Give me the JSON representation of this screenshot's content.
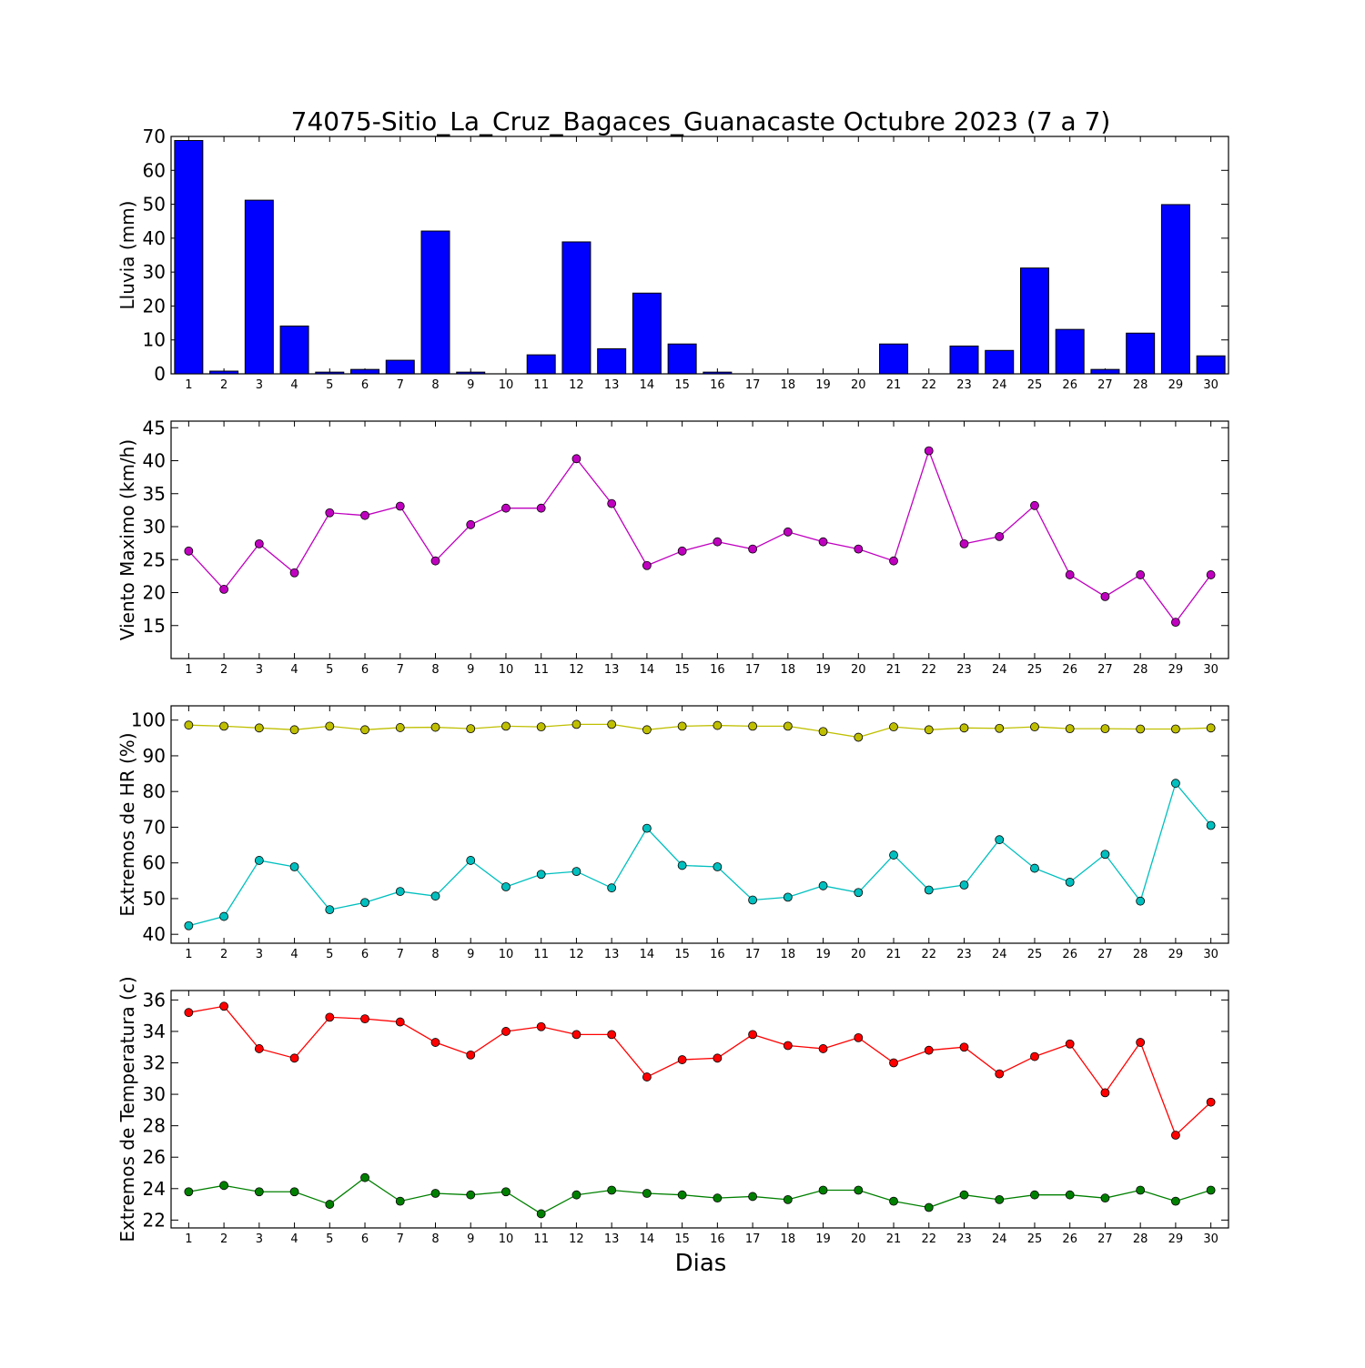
{
  "title": "74075-Sitio_La_Cruz_Bagaces_Guanacaste Octubre 2023  (7 a 7)",
  "xlabel": "Dias",
  "chart_data": [
    {
      "type": "bar",
      "ylabel": "Lluvia (mm)",
      "ylim": [
        0,
        70
      ],
      "yticks": [
        0,
        10,
        20,
        30,
        40,
        50,
        60,
        70
      ],
      "categories": [
        "1",
        "2",
        "3",
        "4",
        "5",
        "6",
        "7",
        "8",
        "9",
        "10",
        "11",
        "12",
        "13",
        "14",
        "15",
        "16",
        "17",
        "18",
        "19",
        "20",
        "21",
        "22",
        "23",
        "24",
        "25",
        "26",
        "27",
        "28",
        "29",
        "30"
      ],
      "series": [
        {
          "color": "#0000ff",
          "values": [
            68.8,
            0.8,
            51.2,
            14.1,
            0.5,
            1.3,
            4.0,
            42.1,
            0.5,
            0.0,
            5.6,
            38.9,
            7.4,
            23.8,
            8.8,
            0.5,
            0.0,
            0.0,
            0.0,
            0.0,
            8.8,
            0.0,
            8.2,
            6.9,
            31.2,
            13.1,
            1.3,
            12.0,
            49.9,
            5.3
          ]
        }
      ]
    },
    {
      "type": "line",
      "ylabel": "Viento Maximo (km/h)",
      "ylim": [
        10,
        46
      ],
      "yticks": [
        15,
        20,
        25,
        30,
        35,
        40,
        45
      ],
      "x": [
        1,
        2,
        3,
        4,
        5,
        6,
        7,
        8,
        9,
        10,
        11,
        12,
        13,
        14,
        15,
        16,
        17,
        18,
        19,
        20,
        21,
        22,
        23,
        24,
        25,
        26,
        27,
        28,
        29,
        30
      ],
      "series": [
        {
          "color": "#bf00bf",
          "values": [
            26.3,
            20.5,
            27.4,
            23.0,
            32.1,
            31.7,
            33.1,
            24.8,
            30.3,
            32.8,
            32.8,
            40.3,
            33.5,
            24.1,
            26.3,
            27.7,
            26.6,
            29.2,
            27.7,
            26.6,
            24.8,
            41.5,
            27.4,
            28.5,
            33.2,
            22.7,
            19.4,
            22.7,
            15.5,
            22.7
          ]
        }
      ]
    },
    {
      "type": "line",
      "ylabel": "Extremos de HR (%)",
      "ylim": [
        37.5,
        104
      ],
      "yticks": [
        40,
        50,
        60,
        70,
        80,
        90,
        100
      ],
      "x": [
        1,
        2,
        3,
        4,
        5,
        6,
        7,
        8,
        9,
        10,
        11,
        12,
        13,
        14,
        15,
        16,
        17,
        18,
        19,
        20,
        21,
        22,
        23,
        24,
        25,
        26,
        27,
        28,
        29,
        30
      ],
      "series": [
        {
          "color": "#bfbf00",
          "values": [
            98.6,
            98.3,
            97.8,
            97.3,
            98.3,
            97.3,
            97.9,
            98.0,
            97.6,
            98.3,
            98.1,
            98.8,
            98.8,
            97.3,
            98.3,
            98.5,
            98.3,
            98.3,
            96.8,
            95.2,
            98.1,
            97.3,
            97.8,
            97.7,
            98.1,
            97.6,
            97.6,
            97.5,
            97.5,
            97.8
          ]
        },
        {
          "color": "#00bfbf",
          "values": [
            42.4,
            45.0,
            60.7,
            58.9,
            46.9,
            48.9,
            52.0,
            50.7,
            60.7,
            53.3,
            56.8,
            57.6,
            53.0,
            69.7,
            59.3,
            58.9,
            49.6,
            50.4,
            53.6,
            51.7,
            62.2,
            52.4,
            53.8,
            66.5,
            58.5,
            54.6,
            62.4,
            49.3,
            82.3,
            70.5
          ]
        }
      ]
    },
    {
      "type": "line",
      "ylabel": "Extremos de Temperatura (c)",
      "ylim": [
        21.5,
        36.6
      ],
      "yticks": [
        22,
        24,
        26,
        28,
        30,
        32,
        34,
        36
      ],
      "x": [
        1,
        2,
        3,
        4,
        5,
        6,
        7,
        8,
        9,
        10,
        11,
        12,
        13,
        14,
        15,
        16,
        17,
        18,
        19,
        20,
        21,
        22,
        23,
        24,
        25,
        26,
        27,
        28,
        29,
        30
      ],
      "series": [
        {
          "color": "#ff0000",
          "values": [
            35.2,
            35.6,
            32.9,
            32.3,
            34.9,
            34.8,
            34.6,
            33.3,
            32.5,
            34.0,
            34.3,
            33.8,
            33.8,
            31.1,
            32.2,
            32.3,
            33.8,
            33.1,
            32.9,
            33.6,
            32.0,
            32.8,
            33.0,
            31.3,
            32.4,
            33.2,
            30.1,
            33.3,
            27.4,
            29.5
          ]
        },
        {
          "color": "#008000",
          "values": [
            23.8,
            24.2,
            23.8,
            23.8,
            23.0,
            24.7,
            23.2,
            23.7,
            23.6,
            23.8,
            22.4,
            23.6,
            23.9,
            23.7,
            23.6,
            23.4,
            23.5,
            23.3,
            23.9,
            23.9,
            23.2,
            22.8,
            23.6,
            23.3,
            23.6,
            23.6,
            23.4,
            23.9,
            23.2,
            23.9
          ]
        }
      ]
    }
  ]
}
